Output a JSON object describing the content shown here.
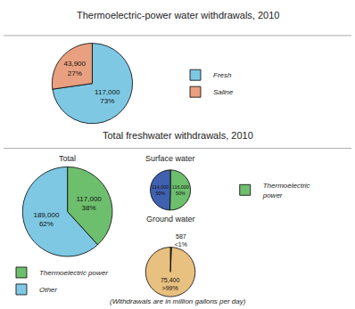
{
  "chart_data": [
    {
      "type": "pie",
      "title": "Thermoelectric-power water withdrawals, 2010",
      "categories": [
        "Fresh",
        "Saline"
      ],
      "values": [
        117000,
        43900
      ],
      "value_labels": [
        "117,000\n73%",
        "43,900\n27%"
      ],
      "colors": [
        "#7ec8e3",
        "#e8a080"
      ],
      "legend": "right"
    },
    {
      "type": "pie",
      "title": "Total freshwater withdrawals, 2010",
      "subtitle": "Total",
      "categories": [
        "Thermoelectric power",
        "Other"
      ],
      "values": [
        117000,
        189000
      ],
      "value_labels": [
        "117,000\n38%",
        "189,000\n62%"
      ],
      "colors": [
        "#6dbf6d",
        "#7ec8e3"
      ],
      "legend": "bottom"
    },
    {
      "type": "pie",
      "subtitle": "Surface water",
      "categories": [
        "Thermoelectric\npower",
        "Other"
      ],
      "values": [
        116000,
        114000
      ],
      "value_labels": [
        "116,000\n50%",
        "114,000\n50%"
      ],
      "colors": [
        "#6dbf6d",
        "#4060b0"
      ],
      "legend": "right"
    },
    {
      "type": "pie",
      "subtitle": "Ground water",
      "categories": [
        "Thermoelectric\npower",
        "Other"
      ],
      "values": [
        587,
        75400
      ],
      "value_labels": [
        "587\n<1%",
        "75,400\n>99%"
      ],
      "colors": [
        "#6dbf6d",
        "#e8c080"
      ],
      "legend": "right",
      "annotations": [
        "(Withdrawals are in million gallons per day)"
      ]
    }
  ]
}
